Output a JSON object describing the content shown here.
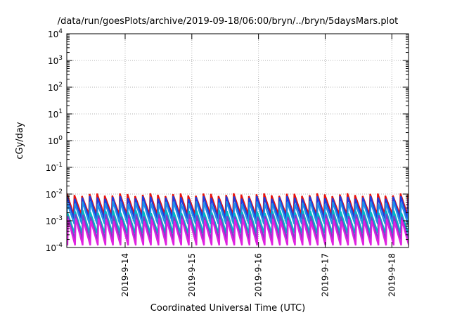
{
  "chart_data": {
    "type": "line",
    "title": "/data/run/goesPlots/archive/2019-09-18/06:00/bryn/../bryn/5daysMars.plot",
    "xlabel": "Coordinated Universal Time (UTC)",
    "ylabel": "cGy/day",
    "y_scale": "log",
    "ylim": [
      0.0001,
      10000
    ],
    "y_ticks": [
      {
        "base": "10",
        "exp": "-4",
        "value": 0.0001
      },
      {
        "base": "10",
        "exp": "-3",
        "value": 0.001
      },
      {
        "base": "10",
        "exp": "-2",
        "value": 0.01
      },
      {
        "base": "10",
        "exp": "-1",
        "value": 0.1
      },
      {
        "base": "10",
        "exp": "0",
        "value": 1
      },
      {
        "base": "10",
        "exp": "1",
        "value": 10
      },
      {
        "base": "10",
        "exp": "2",
        "value": 100
      },
      {
        "base": "10",
        "exp": "3",
        "value": 1000
      },
      {
        "base": "10",
        "exp": "4",
        "value": 10000
      }
    ],
    "xlim": [
      "2019-09-13T03:00",
      "2019-09-18T06:00"
    ],
    "x_ticks": [
      {
        "label": "2019-9-14",
        "value": "2019-09-14T00:00"
      },
      {
        "label": "2019-9-15",
        "value": "2019-09-15T00:00"
      },
      {
        "label": "2019-9-16",
        "value": "2019-09-16T00:00"
      },
      {
        "label": "2019-9-17",
        "value": "2019-09-17T00:00"
      },
      {
        "label": "2019-9-18",
        "value": "2019-09-18T00:00"
      }
    ],
    "grid": true,
    "legend": "none",
    "sawtooth_period_hours": 2.73,
    "series": [
      {
        "color": "#e8120c",
        "peak": 0.0095,
        "trough": 0.0017
      },
      {
        "color": "#1a3fe0",
        "peak": 0.0075,
        "trough": 0.0012
      },
      {
        "color": "#1f8fe6",
        "peak": 0.0048,
        "trough": 0.00075
      },
      {
        "color": "#00b8c4",
        "peak": 0.0022,
        "trough": 0.00034
      },
      {
        "color": "#7a3fc8",
        "peak": 0.0016,
        "trough": 0.0002
      },
      {
        "color": "#e020e0",
        "peak": 0.0011,
        "trough": 0.00012
      }
    ]
  }
}
